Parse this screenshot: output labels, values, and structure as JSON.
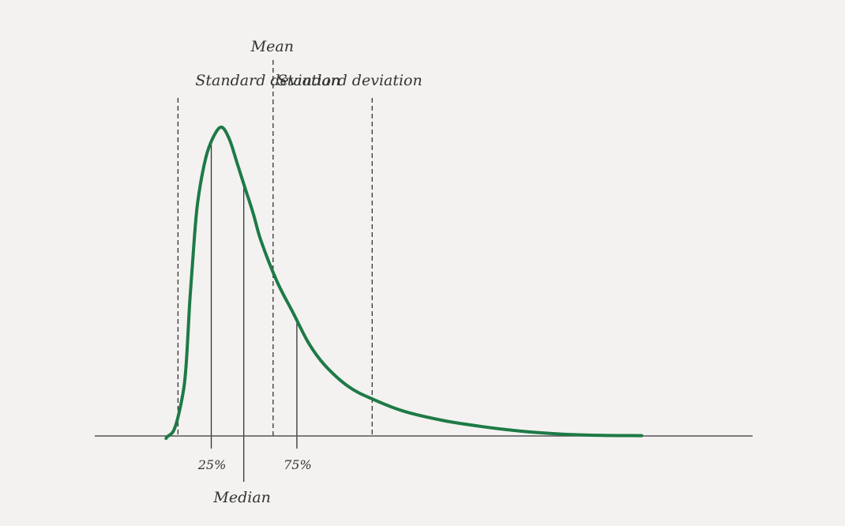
{
  "chart_data": {
    "type": "line",
    "title": "",
    "xlabel": "",
    "ylabel": "",
    "curve_color": "#1e7a46",
    "axis_color": "#555555",
    "line_color": "#333333",
    "series": [
      {
        "values": [
          [
            0,
            0
          ],
          [
            0.1,
            0.02
          ],
          [
            0.2,
            0.12
          ],
          [
            0.25,
            0.22
          ],
          [
            0.3,
            0.44
          ],
          [
            0.35,
            0.62
          ],
          [
            0.4,
            0.76
          ],
          [
            0.5,
            0.9
          ],
          [
            0.6,
            0.97
          ],
          [
            0.7,
            1.0
          ],
          [
            0.8,
            0.96
          ],
          [
            0.9,
            0.88
          ],
          [
            1.0,
            0.8
          ],
          [
            1.1,
            0.72
          ],
          [
            1.2,
            0.63
          ],
          [
            1.4,
            0.5
          ],
          [
            1.6,
            0.4
          ],
          [
            1.8,
            0.3
          ],
          [
            2.0,
            0.23
          ],
          [
            2.3,
            0.16
          ],
          [
            2.6,
            0.12
          ],
          [
            3.0,
            0.08
          ],
          [
            3.5,
            0.05
          ],
          [
            4.0,
            0.03
          ],
          [
            4.5,
            0.015
          ],
          [
            5.0,
            0.006
          ],
          [
            5.5,
            0.002
          ],
          [
            6.0,
            0.001
          ]
        ]
      }
    ],
    "xlim": [
      -0.9,
      7.4
    ],
    "ylim": [
      0,
      1.0
    ],
    "reference_lines": [
      {
        "x": 0.15,
        "label": "Standard deviation",
        "style": "dashed"
      },
      {
        "x": 1.35,
        "label": "Mean",
        "style": "dashed"
      },
      {
        "x": 2.6,
        "label": "Standard deviation",
        "style": "dashed"
      }
    ],
    "markers": [
      {
        "x": 0.57,
        "label": "25%",
        "style": "solid"
      },
      {
        "x": 0.98,
        "label": "Median",
        "style": "solid"
      },
      {
        "x": 1.65,
        "label": "75%",
        "style": "solid"
      }
    ],
    "grid": false,
    "legend": "none"
  }
}
